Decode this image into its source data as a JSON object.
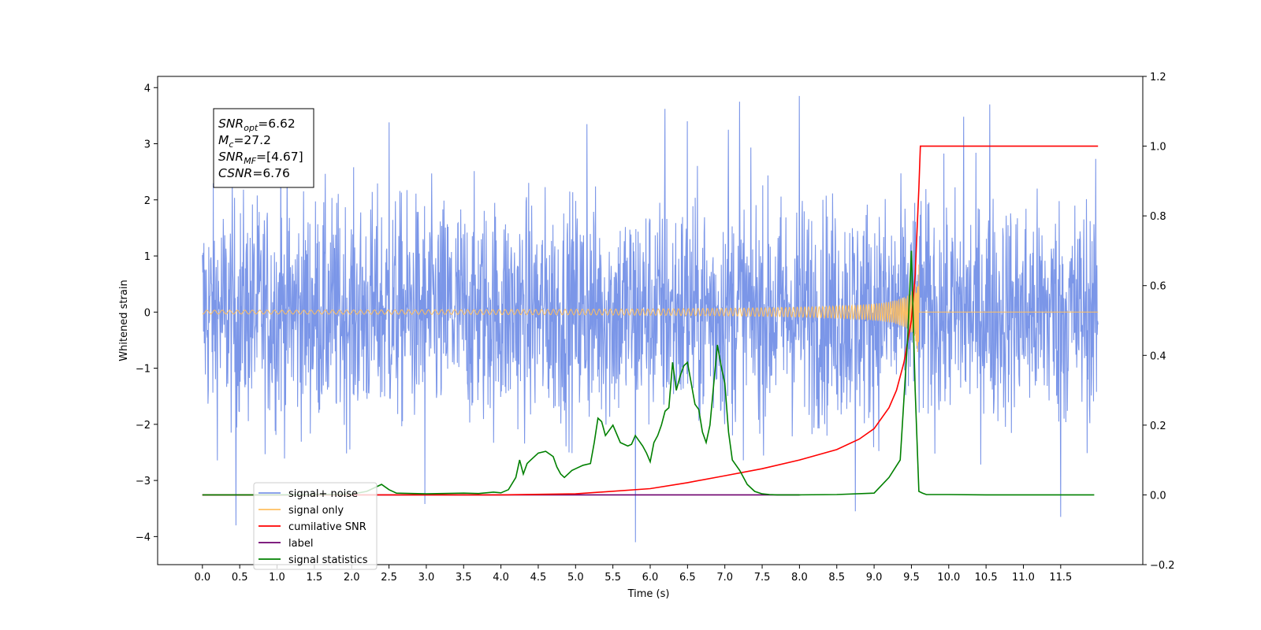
{
  "chart_data": {
    "type": "line",
    "title": "",
    "xlabel": "Time (s)",
    "ylabel_left": "Whitened strain",
    "ylabel_right": "",
    "xlim": [
      -0.6,
      12.6
    ],
    "ylim_left": [
      -4.5,
      4.2
    ],
    "ylim_right": [
      -0.2,
      1.2
    ],
    "x_ticks": [
      "0.0",
      "0.5",
      "1.0",
      "1.5",
      "2.0",
      "2.5",
      "3.0",
      "3.5",
      "4.0",
      "4.5",
      "5.0",
      "5.5",
      "6.0",
      "6.5",
      "7.0",
      "7.5",
      "8.0",
      "8.5",
      "9.0",
      "9.5",
      "10.0",
      "10.5",
      "11.0",
      "11.5"
    ],
    "y_ticks_left": [
      "4",
      "3",
      "2",
      "1",
      "0",
      "−1",
      "−2",
      "−3",
      "−4"
    ],
    "y_ticks_right": [
      "1.2",
      "1.0",
      "0.8",
      "0.6",
      "0.4",
      "0.2",
      "0.0",
      "−0.2"
    ],
    "grid": false,
    "legend_position": "lower-left",
    "annotation": {
      "lines": [
        {
          "name": "SNR",
          "sub": "opt",
          "value": "=6.62"
        },
        {
          "name": "M",
          "sub": "c",
          "value": "=27.2"
        },
        {
          "name": "SNR",
          "sub": "MF",
          "value": "=[4.67]"
        },
        {
          "name": "CSNR",
          "sub": "",
          "value": "=6.76"
        }
      ]
    },
    "series": [
      {
        "name": "signal+ noise",
        "axis": "left",
        "color": "#7b96e8",
        "x_range": [
          0.0,
          12.0
        ],
        "envelope": {
          "min": -4.1,
          "max": 3.85,
          "typical_spread": 1.0
        },
        "spikes": [
          {
            "x": 0.45,
            "y": -3.8
          },
          {
            "x": 1.05,
            "y": 3.05
          },
          {
            "x": 2.5,
            "y": 3.38
          },
          {
            "x": 2.98,
            "y": -3.42
          },
          {
            "x": 5.15,
            "y": 3.35
          },
          {
            "x": 5.8,
            "y": -4.1
          },
          {
            "x": 6.2,
            "y": 3.62
          },
          {
            "x": 6.5,
            "y": 3.4
          },
          {
            "x": 7.05,
            "y": 3.25
          },
          {
            "x": 7.2,
            "y": 3.75
          },
          {
            "x": 8.0,
            "y": 3.85
          },
          {
            "x": 8.75,
            "y": -3.55
          },
          {
            "x": 10.2,
            "y": 3.48
          },
          {
            "x": 10.55,
            "y": 3.7
          },
          {
            "x": 11.5,
            "y": -3.65
          }
        ]
      },
      {
        "name": "signal only",
        "axis": "left",
        "color": "#ffbf60",
        "x_range": [
          0.0,
          12.0
        ],
        "chirp_peak_x": 9.6,
        "chirp_peak_amplitude": 1.0
      },
      {
        "name": "cumilative SNR",
        "axis": "right",
        "color": "#ff0000",
        "x": [
          0.0,
          4.0,
          5.0,
          6.0,
          6.5,
          7.0,
          7.5,
          8.0,
          8.5,
          8.8,
          9.0,
          9.2,
          9.3,
          9.4,
          9.5,
          9.55,
          9.6,
          9.62,
          12.0
        ],
        "y": [
          0.0,
          0.0,
          0.003,
          0.018,
          0.035,
          0.055,
          0.075,
          0.1,
          0.13,
          0.16,
          0.19,
          0.25,
          0.3,
          0.38,
          0.5,
          0.63,
          0.88,
          1.0,
          1.0
        ]
      },
      {
        "name": "label",
        "axis": "right",
        "color": "#6e006e",
        "x": [
          0.0,
          8.0
        ],
        "y": [
          0.0,
          0.0
        ]
      },
      {
        "name": "signal statistics",
        "axis": "right",
        "color": "#008000",
        "x": [
          0.0,
          1.0,
          2.0,
          2.2,
          2.3,
          2.4,
          2.5,
          2.6,
          3.0,
          3.5,
          3.7,
          3.9,
          4.0,
          4.1,
          4.2,
          4.25,
          4.3,
          4.35,
          4.4,
          4.5,
          4.6,
          4.7,
          4.75,
          4.8,
          4.85,
          4.9,
          4.95,
          5.0,
          5.1,
          5.2,
          5.25,
          5.3,
          5.35,
          5.4,
          5.5,
          5.6,
          5.7,
          5.75,
          5.8,
          5.9,
          5.95,
          6.0,
          6.05,
          6.1,
          6.15,
          6.2,
          6.25,
          6.3,
          6.35,
          6.4,
          6.45,
          6.5,
          6.6,
          6.65,
          6.7,
          6.75,
          6.8,
          6.9,
          6.95,
          7.0,
          7.05,
          7.1,
          7.2,
          7.3,
          7.4,
          7.5,
          7.6,
          7.7,
          8.0,
          8.5,
          9.0,
          9.2,
          9.35,
          9.45,
          9.5,
          9.55,
          9.6,
          9.65,
          9.7,
          10.0,
          10.5,
          11.0,
          11.5,
          11.95
        ],
        "y": [
          0.0,
          0.0,
          0.002,
          0.01,
          0.02,
          0.03,
          0.015,
          0.005,
          0.003,
          0.005,
          0.004,
          0.008,
          0.006,
          0.015,
          0.05,
          0.1,
          0.06,
          0.09,
          0.1,
          0.12,
          0.125,
          0.11,
          0.08,
          0.06,
          0.05,
          0.06,
          0.07,
          0.075,
          0.085,
          0.09,
          0.15,
          0.22,
          0.21,
          0.17,
          0.2,
          0.15,
          0.14,
          0.145,
          0.17,
          0.14,
          0.12,
          0.095,
          0.15,
          0.17,
          0.2,
          0.24,
          0.25,
          0.38,
          0.3,
          0.34,
          0.37,
          0.38,
          0.26,
          0.245,
          0.18,
          0.15,
          0.2,
          0.43,
          0.37,
          0.32,
          0.18,
          0.1,
          0.07,
          0.03,
          0.01,
          0.003,
          0.001,
          0.0,
          0.0,
          0.001,
          0.005,
          0.05,
          0.1,
          0.45,
          0.7,
          0.3,
          0.01,
          0.005,
          0.001,
          0.001,
          0.0,
          0.0,
          0.0,
          0.0
        ]
      }
    ],
    "legend_entries": [
      "signal+ noise",
      "signal only",
      "cumilative SNR",
      "label",
      "signal statistics"
    ]
  }
}
